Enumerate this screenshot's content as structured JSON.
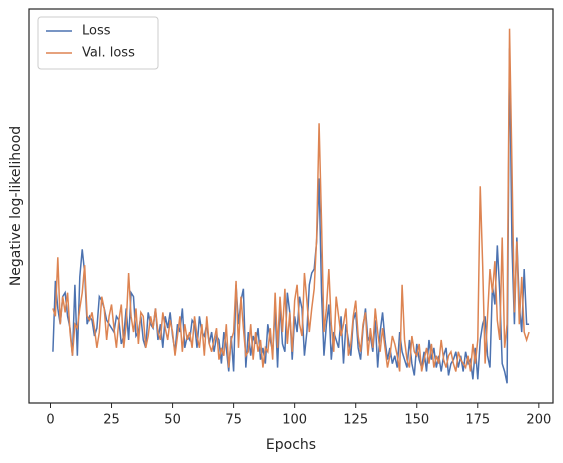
{
  "chart_data": {
    "type": "line",
    "xlabel": "Epochs",
    "ylabel": "Negative log-likelihood",
    "x": [
      1,
      2,
      3,
      4,
      5,
      6,
      7,
      8,
      9,
      10,
      11,
      12,
      13,
      14,
      15,
      16,
      17,
      18,
      19,
      20,
      21,
      22,
      23,
      24,
      25,
      26,
      27,
      28,
      29,
      30,
      31,
      32,
      33,
      34,
      35,
      36,
      37,
      38,
      39,
      40,
      41,
      42,
      43,
      44,
      45,
      46,
      47,
      48,
      49,
      50,
      51,
      52,
      53,
      54,
      55,
      56,
      57,
      58,
      59,
      60,
      61,
      62,
      63,
      64,
      65,
      66,
      67,
      68,
      69,
      70,
      71,
      72,
      73,
      74,
      75,
      76,
      77,
      78,
      79,
      80,
      81,
      82,
      83,
      84,
      85,
      86,
      87,
      88,
      89,
      90,
      91,
      92,
      93,
      94,
      95,
      96,
      97,
      98,
      99,
      100,
      101,
      102,
      103,
      104,
      105,
      106,
      107,
      108,
      109,
      110,
      111,
      112,
      113,
      114,
      115,
      116,
      117,
      118,
      119,
      120,
      121,
      122,
      123,
      124,
      125,
      126,
      127,
      128,
      129,
      130,
      131,
      132,
      133,
      134,
      135,
      136,
      137,
      138,
      139,
      140,
      141,
      142,
      143,
      144,
      145,
      146,
      147,
      148,
      149,
      150,
      151,
      152,
      153,
      154,
      155,
      156,
      157,
      158,
      159,
      160,
      161,
      162,
      163,
      164,
      165,
      166,
      167,
      168,
      169,
      170,
      171,
      172,
      173,
      174,
      175,
      176,
      177,
      178,
      179,
      180,
      181,
      182,
      183,
      184,
      185,
      186,
      187,
      188,
      189,
      190,
      191,
      192,
      193,
      194,
      195,
      196
    ],
    "series": [
      {
        "name": "Loss",
        "color": "#4c72b0",
        "values": [
          13,
          31,
          24,
          20,
          27,
          28,
          22,
          19,
          12,
          30,
          12,
          32,
          39,
          33,
          20,
          22,
          21,
          17,
          19,
          27,
          26,
          24,
          21,
          20,
          19,
          18,
          22,
          21,
          15,
          17,
          24,
          16,
          28,
          27,
          17,
          18,
          22,
          16,
          14,
          23,
          20,
          19,
          24,
          16,
          20,
          14,
          22,
          19,
          23,
          17,
          13,
          20,
          18,
          24,
          14,
          17,
          16,
          21,
          20,
          14,
          22,
          18,
          17,
          20,
          15,
          18,
          13,
          17,
          16,
          10,
          18,
          14,
          8,
          17,
          8,
          30,
          20,
          26,
          29,
          9,
          18,
          12,
          17,
          15,
          19,
          11,
          14,
          10,
          20,
          16,
          13,
          24,
          9,
          25,
          15,
          13,
          28,
          23,
          11,
          22,
          18,
          27,
          24,
          12,
          18,
          30,
          33,
          34,
          41,
          57,
          28,
          12,
          20,
          25,
          11,
          18,
          16,
          14,
          22,
          10,
          20,
          16,
          12,
          21,
          23,
          14,
          11,
          19,
          24,
          16,
          17,
          13,
          21,
          9,
          18,
          23,
          16,
          11,
          14,
          10,
          12,
          9,
          18,
          13,
          11,
          9,
          16,
          10,
          7,
          15,
          11,
          9,
          13,
          8,
          16,
          11,
          14,
          9,
          12,
          8,
          12,
          14,
          7,
          10,
          11,
          13,
          9,
          12,
          8,
          13,
          10,
          11,
          6,
          14,
          6,
          16,
          20,
          22,
          12,
          9,
          30,
          25,
          40,
          28,
          10,
          8,
          5,
          90,
          40,
          20,
          42,
          25,
          18,
          34,
          20,
          20
        ]
      },
      {
        "name": "Val. loss",
        "color": "#dd8452",
        "values": [
          24,
          22,
          37,
          20,
          27,
          23,
          28,
          18,
          12,
          20,
          19,
          24,
          28,
          35,
          22,
          21,
          23,
          19,
          14,
          18,
          27,
          24,
          16,
          22,
          25,
          19,
          14,
          21,
          25,
          14,
          20,
          33,
          22,
          18,
          24,
          15,
          23,
          22,
          14,
          17,
          22,
          19,
          24,
          18,
          16,
          23,
          19,
          16,
          21,
          18,
          12,
          17,
          22,
          13,
          20,
          16,
          18,
          14,
          22,
          17,
          14,
          20,
          12,
          22,
          15,
          13,
          16,
          19,
          11,
          14,
          12,
          20,
          9,
          16,
          18,
          31,
          14,
          27,
          19,
          12,
          13,
          20,
          11,
          18,
          13,
          16,
          9,
          14,
          13,
          19,
          11,
          28,
          14,
          27,
          18,
          29,
          15,
          23,
          13,
          26,
          30,
          20,
          17,
          33,
          26,
          18,
          24,
          29,
          42,
          71,
          46,
          18,
          24,
          34,
          20,
          13,
          27,
          22,
          17,
          20,
          24,
          12,
          15,
          22,
          26,
          17,
          13,
          20,
          23,
          12,
          19,
          14,
          24,
          18,
          13,
          19,
          14,
          9,
          12,
          17,
          15,
          12,
          8,
          30,
          16,
          11,
          9,
          17,
          13,
          12,
          15,
          8,
          11,
          14,
          10,
          15,
          9,
          12,
          10,
          16,
          11,
          9,
          12,
          13,
          10,
          8,
          13,
          11,
          10,
          9,
          12,
          8,
          15,
          10,
          16,
          55,
          35,
          10,
          22,
          34,
          28,
          36,
          21,
          16,
          42,
          14,
          20,
          95,
          60,
          23,
          41,
          20,
          32,
          18,
          16,
          18
        ]
      }
    ],
    "xlim": [
      -8.8,
      205.8
    ],
    "xticks": [
      0,
      25,
      50,
      75,
      100,
      125,
      150,
      175,
      200
    ],
    "ylim": [
      0,
      100
    ],
    "legend": "upper left"
  }
}
